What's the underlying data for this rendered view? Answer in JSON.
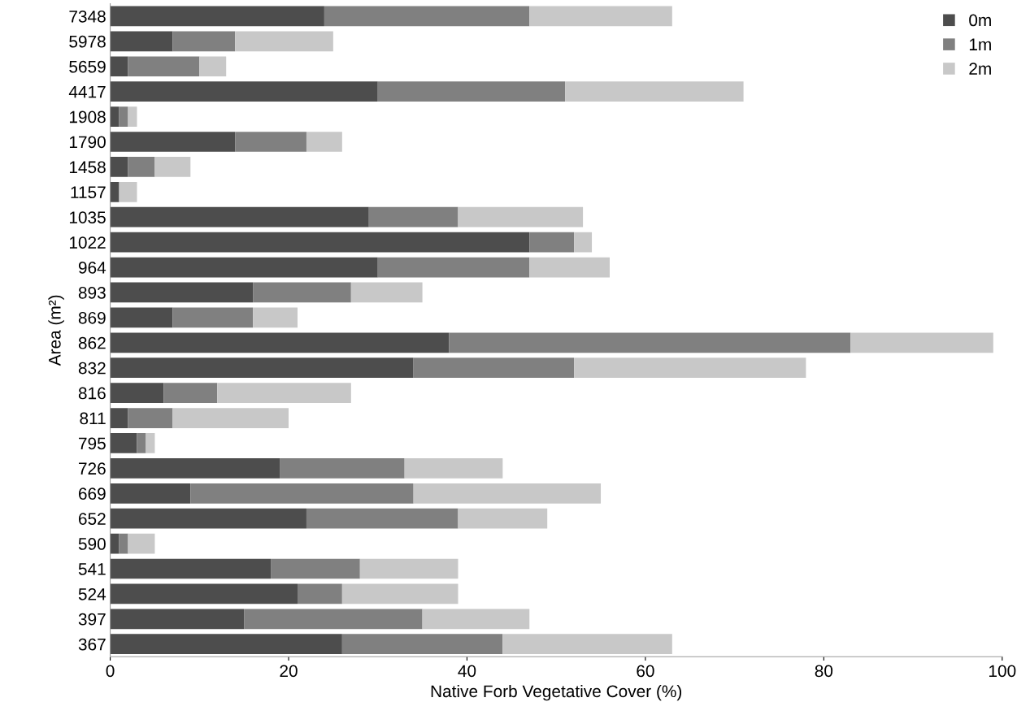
{
  "chart_data": {
    "type": "bar",
    "orientation": "horizontal",
    "stacked": true,
    "xlabel": "Native Forb Vegetative Cover (%)",
    "ylabel": "Area (m²)",
    "categories": [
      "7348",
      "5978",
      "5659",
      "4417",
      "1908",
      "1790",
      "1458",
      "1157",
      "1035",
      "1022",
      "964",
      "893",
      "869",
      "862",
      "832",
      "816",
      "811",
      "795",
      "726",
      "669",
      "652",
      "590",
      "541",
      "524",
      "397",
      "367"
    ],
    "series": [
      {
        "name": "0m",
        "color": "#4d4d4d",
        "values": [
          24,
          7,
          2,
          30,
          1,
          14,
          2,
          1,
          29,
          47,
          30,
          16,
          7,
          38,
          34,
          6,
          2,
          3,
          19,
          9,
          22,
          1,
          18,
          21,
          15,
          26
        ]
      },
      {
        "name": "1m",
        "color": "#808080",
        "values": [
          23,
          7,
          8,
          21,
          1,
          8,
          3,
          0,
          10,
          5,
          17,
          11,
          9,
          45,
          18,
          6,
          5,
          1,
          14,
          25,
          17,
          1,
          10,
          5,
          20,
          18
        ]
      },
      {
        "name": "2m",
        "color": "#c8c8c8",
        "values": [
          16,
          11,
          3,
          20,
          1,
          4,
          4,
          2,
          14,
          2,
          9,
          8,
          5,
          16,
          26,
          15,
          13,
          1,
          11,
          21,
          10,
          3,
          11,
          13,
          12,
          19
        ]
      }
    ],
    "xlim": [
      0,
      100
    ],
    "xticks": [
      0,
      20,
      40,
      60,
      80,
      100
    ],
    "grid": false,
    "legend": "top right"
  }
}
